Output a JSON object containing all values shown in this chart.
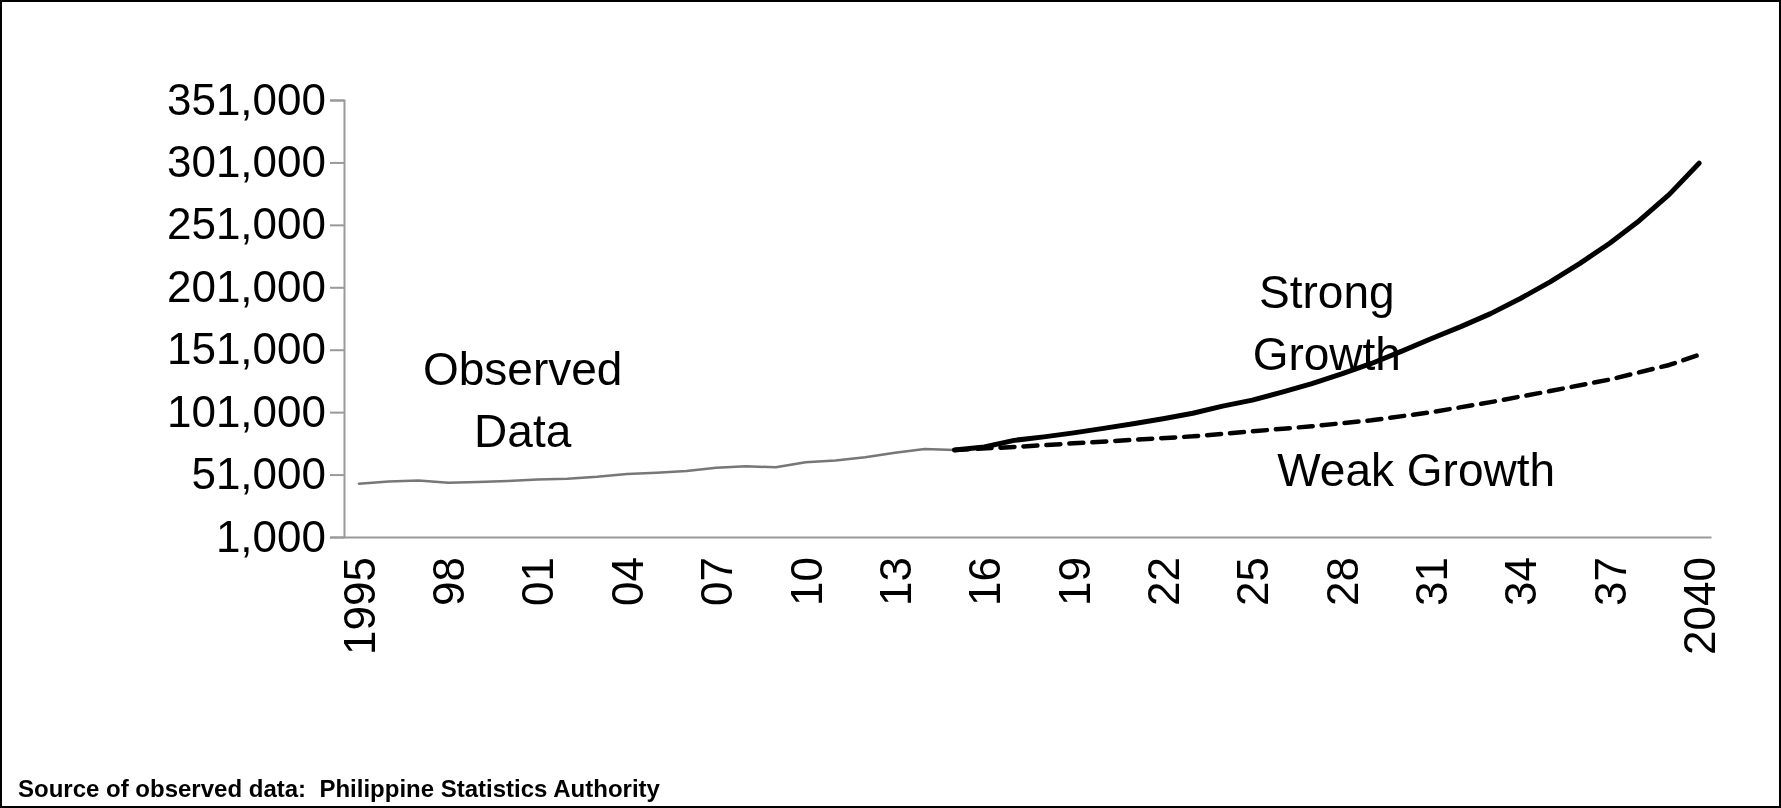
{
  "chart_data": {
    "type": "line",
    "xlim": [
      1994.5,
      2040.4
    ],
    "xticks": [
      {
        "value": 1995,
        "label": "1995"
      },
      {
        "value": 1998,
        "label": "98"
      },
      {
        "value": 2001,
        "label": "01"
      },
      {
        "value": 2004,
        "label": "04"
      },
      {
        "value": 2007,
        "label": "07"
      },
      {
        "value": 2010,
        "label": "10"
      },
      {
        "value": 2013,
        "label": "13"
      },
      {
        "value": 2016,
        "label": "16"
      },
      {
        "value": 2019,
        "label": "19"
      },
      {
        "value": 2022,
        "label": "22"
      },
      {
        "value": 2025,
        "label": "25"
      },
      {
        "value": 2028,
        "label": "28"
      },
      {
        "value": 2031,
        "label": "31"
      },
      {
        "value": 2034,
        "label": "34"
      },
      {
        "value": 2037,
        "label": "37"
      },
      {
        "value": 2040,
        "label": "2040"
      }
    ],
    "ylim": [
      1000,
      351000
    ],
    "yticks": [
      {
        "value": 1000,
        "label": "1,000"
      },
      {
        "value": 51000,
        "label": "51,000"
      },
      {
        "value": 101000,
        "label": "101,000"
      },
      {
        "value": 151000,
        "label": "151,000"
      },
      {
        "value": 201000,
        "label": "201,000"
      },
      {
        "value": 251000,
        "label": "251,000"
      },
      {
        "value": 301000,
        "label": "301,000"
      },
      {
        "value": 351000,
        "label": "351,000"
      }
    ],
    "grid": false,
    "series": [
      {
        "name": "Observed Data",
        "color": "#777777",
        "line_style": "solid",
        "x": [
          1995,
          1996,
          1997,
          1998,
          1999,
          2000,
          2001,
          2002,
          2003,
          2004,
          2005,
          2006,
          2007,
          2008,
          2009,
          2010,
          2011,
          2012,
          2013,
          2014,
          2015
        ],
        "values": [
          43700,
          45500,
          46200,
          44400,
          45100,
          45800,
          47000,
          47700,
          49200,
          51400,
          52500,
          53900,
          56500,
          57600,
          56800,
          60900,
          62300,
          64900,
          68500,
          71400,
          70700
        ]
      },
      {
        "name": "Strong Growth",
        "color": "#000000",
        "line_style": "solid",
        "x": [
          2015,
          2016,
          2017,
          2018,
          2019,
          2020,
          2021,
          2022,
          2023,
          2024,
          2025,
          2026,
          2027,
          2028,
          2029,
          2030,
          2031,
          2032,
          2033,
          2034,
          2035,
          2036,
          2037,
          2038,
          2039,
          2040
        ],
        "values": [
          70700,
          73100,
          78400,
          81200,
          84400,
          88000,
          91700,
          95700,
          100100,
          105800,
          110600,
          117100,
          123900,
          131600,
          140000,
          149700,
          159800,
          169500,
          179900,
          192000,
          205300,
          220200,
          236300,
          254500,
          275400,
          300400
        ]
      },
      {
        "name": "Weak Growth",
        "color": "#000000",
        "line_style": "dashed",
        "x": [
          2015,
          2017,
          2019,
          2021,
          2023,
          2025,
          2027,
          2029,
          2031,
          2033,
          2035,
          2037,
          2039,
          2040
        ],
        "values": [
          70700,
          73100,
          76000,
          78800,
          81600,
          85600,
          89700,
          94500,
          100900,
          109000,
          117900,
          127100,
          138800,
          146900
        ]
      }
    ],
    "annotations": [
      "Source of observed data:  Philippine Statistics Authority"
    ]
  }
}
